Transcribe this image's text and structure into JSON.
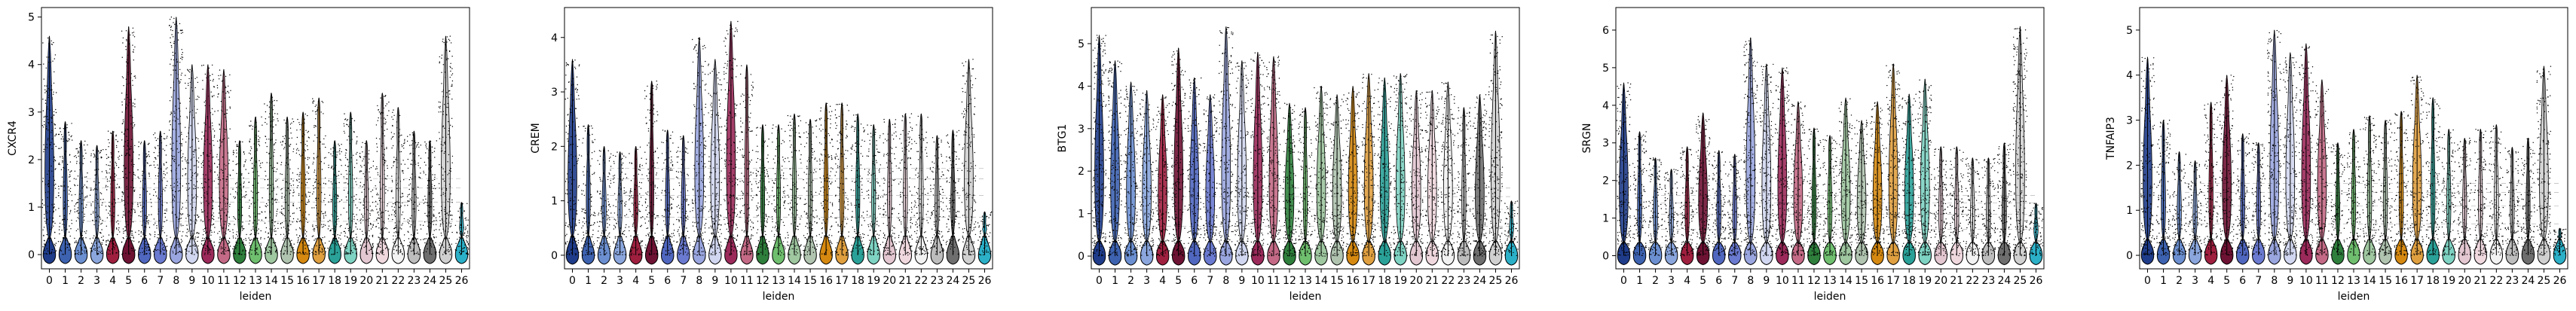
{
  "chart_data": [
    {
      "type": "violin",
      "xlabel": "leiden",
      "ylabel": "CXCR4",
      "ylim": [
        -0.3,
        5.2
      ],
      "yticks": [
        0,
        1,
        2,
        3,
        4,
        5
      ],
      "categories": [
        "0",
        "1",
        "2",
        "3",
        "4",
        "5",
        "6",
        "7",
        "8",
        "9",
        "10",
        "11",
        "12",
        "13",
        "14",
        "15",
        "16",
        "17",
        "18",
        "19",
        "20",
        "21",
        "22",
        "23",
        "24",
        "25",
        "26"
      ],
      "max_values": [
        4.6,
        2.8,
        2.4,
        2.3,
        2.6,
        4.8,
        2.4,
        2.6,
        5.0,
        4.0,
        4.0,
        3.9,
        2.4,
        2.9,
        3.4,
        2.9,
        3.0,
        3.3,
        2.4,
        3.0,
        2.4,
        3.4,
        3.1,
        2.6,
        2.4,
        4.6,
        1.1
      ],
      "colors": [
        "#1f3c8a",
        "#3d62b0",
        "#6b8fd0",
        "#8aa6dd",
        "#9f1f3f",
        "#6e1233",
        "#5067c0",
        "#6a7ad0",
        "#9aa6df",
        "#d1d7f0",
        "#9b2a5a",
        "#c46a86",
        "#2e7f3c",
        "#6fbf6f",
        "#9fc7a0",
        "#b0c4b0",
        "#d68910",
        "#e0a040",
        "#2aa198",
        "#7ed3c3",
        "#e3c7d1",
        "#f0d8df",
        "#f2f2f2",
        "#bdbdbd",
        "#6e6e6e",
        "#d0d0d0",
        "#2bb0c8"
      ]
    },
    {
      "type": "violin",
      "xlabel": "leiden",
      "ylabel": "CREM",
      "ylim": [
        -0.25,
        4.55
      ],
      "yticks": [
        0,
        1,
        2,
        3,
        4
      ],
      "categories": [
        "0",
        "1",
        "2",
        "3",
        "4",
        "5",
        "6",
        "7",
        "8",
        "9",
        "10",
        "11",
        "12",
        "13",
        "14",
        "15",
        "16",
        "17",
        "18",
        "19",
        "20",
        "21",
        "22",
        "23",
        "24",
        "25",
        "26"
      ],
      "max_values": [
        3.6,
        2.4,
        2.0,
        1.9,
        2.0,
        3.2,
        2.3,
        2.2,
        4.0,
        3.6,
        4.3,
        3.5,
        2.4,
        2.4,
        2.6,
        2.5,
        2.8,
        2.8,
        2.6,
        2.4,
        2.5,
        2.6,
        2.6,
        2.2,
        2.3,
        3.6,
        0.8
      ],
      "colors": [
        "#1f3c8a",
        "#3d62b0",
        "#6b8fd0",
        "#8aa6dd",
        "#9f1f3f",
        "#6e1233",
        "#5067c0",
        "#6a7ad0",
        "#9aa6df",
        "#d1d7f0",
        "#9b2a5a",
        "#c46a86",
        "#2e7f3c",
        "#6fbf6f",
        "#9fc7a0",
        "#b0c4b0",
        "#d68910",
        "#e0a040",
        "#2aa198",
        "#7ed3c3",
        "#e3c7d1",
        "#f0d8df",
        "#f2f2f2",
        "#bdbdbd",
        "#6e6e6e",
        "#d0d0d0",
        "#2bb0c8"
      ]
    },
    {
      "type": "violin",
      "xlabel": "leiden",
      "ylabel": "BTG1",
      "ylim": [
        -0.3,
        5.85
      ],
      "yticks": [
        0,
        1,
        2,
        3,
        4,
        5
      ],
      "categories": [
        "0",
        "1",
        "2",
        "3",
        "4",
        "5",
        "6",
        "7",
        "8",
        "9",
        "10",
        "11",
        "12",
        "13",
        "14",
        "15",
        "16",
        "17",
        "18",
        "19",
        "20",
        "21",
        "22",
        "23",
        "24",
        "25",
        "26"
      ],
      "max_values": [
        5.2,
        4.6,
        4.1,
        3.9,
        3.8,
        4.9,
        4.2,
        3.8,
        5.4,
        4.6,
        4.8,
        4.7,
        3.6,
        3.5,
        4.0,
        3.8,
        4.0,
        4.3,
        4.2,
        4.3,
        3.9,
        3.9,
        4.1,
        3.5,
        3.8,
        5.3,
        1.3
      ],
      "colors": [
        "#1f3c8a",
        "#3d62b0",
        "#6b8fd0",
        "#8aa6dd",
        "#9f1f3f",
        "#6e1233",
        "#5067c0",
        "#6a7ad0",
        "#9aa6df",
        "#d1d7f0",
        "#9b2a5a",
        "#c46a86",
        "#2e7f3c",
        "#6fbf6f",
        "#9fc7a0",
        "#b0c4b0",
        "#d68910",
        "#e0a040",
        "#2aa198",
        "#7ed3c3",
        "#e3c7d1",
        "#f0d8df",
        "#f2f2f2",
        "#bdbdbd",
        "#6e6e6e",
        "#d0d0d0",
        "#2bb0c8"
      ]
    },
    {
      "type": "violin",
      "xlabel": "leiden",
      "ylabel": "SRGN",
      "ylim": [
        -0.35,
        6.6
      ],
      "yticks": [
        0,
        1,
        2,
        3,
        4,
        5,
        6
      ],
      "categories": [
        "0",
        "1",
        "2",
        "3",
        "4",
        "5",
        "6",
        "7",
        "8",
        "9",
        "10",
        "11",
        "12",
        "13",
        "14",
        "15",
        "16",
        "17",
        "18",
        "19",
        "20",
        "21",
        "22",
        "23",
        "24",
        "25",
        "26"
      ],
      "max_values": [
        4.6,
        3.3,
        2.6,
        2.3,
        2.9,
        3.8,
        2.8,
        2.7,
        5.8,
        5.1,
        5.0,
        4.1,
        3.4,
        3.2,
        4.2,
        3.6,
        4.1,
        5.1,
        4.3,
        4.7,
        2.9,
        2.9,
        2.6,
        2.6,
        3.0,
        6.1,
        1.4
      ],
      "colors": [
        "#1f3c8a",
        "#3d62b0",
        "#6b8fd0",
        "#8aa6dd",
        "#9f1f3f",
        "#6e1233",
        "#5067c0",
        "#6a7ad0",
        "#9aa6df",
        "#d1d7f0",
        "#9b2a5a",
        "#c46a86",
        "#2e7f3c",
        "#6fbf6f",
        "#9fc7a0",
        "#b0c4b0",
        "#d68910",
        "#e0a040",
        "#2aa198",
        "#7ed3c3",
        "#e3c7d1",
        "#f0d8df",
        "#f2f2f2",
        "#bdbdbd",
        "#6e6e6e",
        "#d0d0d0",
        "#2bb0c8"
      ]
    },
    {
      "type": "violin",
      "xlabel": "leiden",
      "ylabel": "TNFAIP3",
      "ylim": [
        -0.3,
        5.5
      ],
      "yticks": [
        0,
        1,
        2,
        3,
        4,
        5
      ],
      "categories": [
        "0",
        "1",
        "2",
        "3",
        "4",
        "5",
        "6",
        "7",
        "8",
        "9",
        "10",
        "11",
        "12",
        "13",
        "14",
        "15",
        "16",
        "17",
        "18",
        "19",
        "20",
        "21",
        "22",
        "23",
        "24",
        "25",
        "26"
      ],
      "max_values": [
        4.4,
        3.0,
        2.3,
        2.1,
        3.4,
        4.0,
        2.7,
        2.5,
        5.0,
        4.5,
        4.7,
        3.9,
        2.5,
        2.8,
        3.1,
        3.0,
        3.2,
        4.0,
        3.5,
        2.8,
        2.6,
        2.8,
        2.9,
        2.4,
        2.6,
        4.2,
        0.6
      ],
      "colors": [
        "#1f3c8a",
        "#3d62b0",
        "#6b8fd0",
        "#8aa6dd",
        "#9f1f3f",
        "#6e1233",
        "#5067c0",
        "#6a7ad0",
        "#9aa6df",
        "#d1d7f0",
        "#9b2a5a",
        "#c46a86",
        "#2e7f3c",
        "#6fbf6f",
        "#9fc7a0",
        "#b0c4b0",
        "#d68910",
        "#e0a040",
        "#2aa198",
        "#7ed3c3",
        "#e3c7d1",
        "#f0d8df",
        "#f2f2f2",
        "#bdbdbd",
        "#6e6e6e",
        "#d0d0d0",
        "#2bb0c8"
      ]
    }
  ]
}
